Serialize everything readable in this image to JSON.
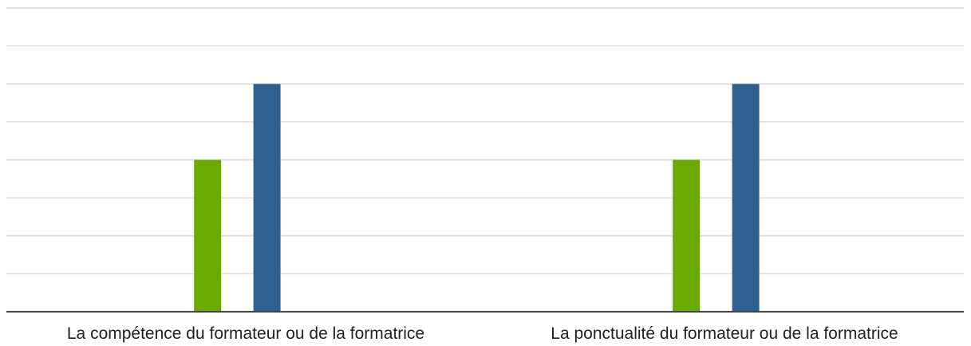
{
  "chart_data": {
    "type": "bar",
    "title": "",
    "xlabel": "",
    "ylabel": "",
    "ylim": [
      0,
      4
    ],
    "grid": true,
    "legend": "none",
    "categories": [
      "La compétence du formateur ou de la formatrice",
      "La ponctualité du formateur ou de la formatrice"
    ],
    "series": [
      {
        "values": [
          0,
          0
        ],
        "color": "#6aaa00"
      },
      {
        "values": [
          2,
          2
        ],
        "color": "#6aaa00"
      },
      {
        "values": [
          3,
          3
        ],
        "color": "#2e6192"
      }
    ],
    "axis_color": "#444444",
    "grid_color": "#dddddd"
  }
}
